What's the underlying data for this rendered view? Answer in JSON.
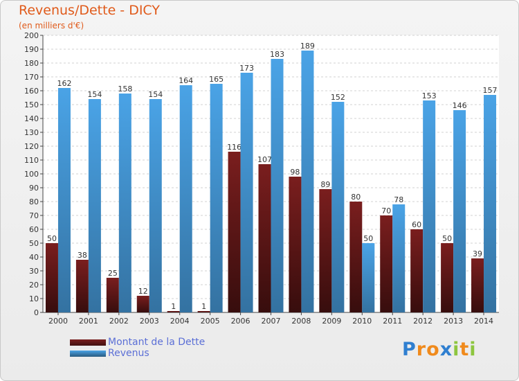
{
  "header": {
    "title": "Revenus/Dette - DICY",
    "subtitle": "(en milliers d'€)"
  },
  "chart_data": {
    "type": "bar",
    "categories": [
      "2000",
      "2001",
      "2002",
      "2003",
      "2004",
      "2005",
      "2006",
      "2007",
      "2008",
      "2009",
      "2010",
      "2011",
      "2012",
      "2013",
      "2014"
    ],
    "series": [
      {
        "name": "Montant de la Dette",
        "values": [
          50,
          38,
          25,
          12,
          1,
          1,
          116,
          107,
          98,
          89,
          80,
          70,
          60,
          50,
          39
        ],
        "color": "#7a1e1e"
      },
      {
        "name": "Revenus",
        "values": [
          162,
          154,
          158,
          154,
          164,
          165,
          173,
          183,
          189,
          152,
          50,
          78,
          153,
          146,
          157
        ],
        "color": "#4aa3e6"
      }
    ],
    "ylim": [
      0,
      200
    ],
    "yticks": [
      0,
      10,
      20,
      30,
      40,
      50,
      60,
      70,
      80,
      90,
      100,
      110,
      120,
      130,
      140,
      150,
      160,
      170,
      180,
      190,
      200
    ],
    "grid": true,
    "legend_position": "bottom-left"
  },
  "legend": {
    "items": [
      {
        "label": "Montant de la Dette",
        "color": "#7a1e1e"
      },
      {
        "label": "Revenus",
        "color": "#4aa3e6"
      }
    ]
  },
  "logo": {
    "text": "Proxiti",
    "letters": [
      {
        "ch": "P",
        "color": "#2f7fd0"
      },
      {
        "ch": "r",
        "color": "#f08a1c"
      },
      {
        "ch": "o",
        "color": "#f08a1c"
      },
      {
        "ch": "x",
        "color": "#2f7fd0"
      },
      {
        "ch": "i",
        "color": "#8dc63f"
      },
      {
        "ch": "t",
        "color": "#f08a1c"
      },
      {
        "ch": "i",
        "color": "#8dc63f"
      }
    ]
  }
}
